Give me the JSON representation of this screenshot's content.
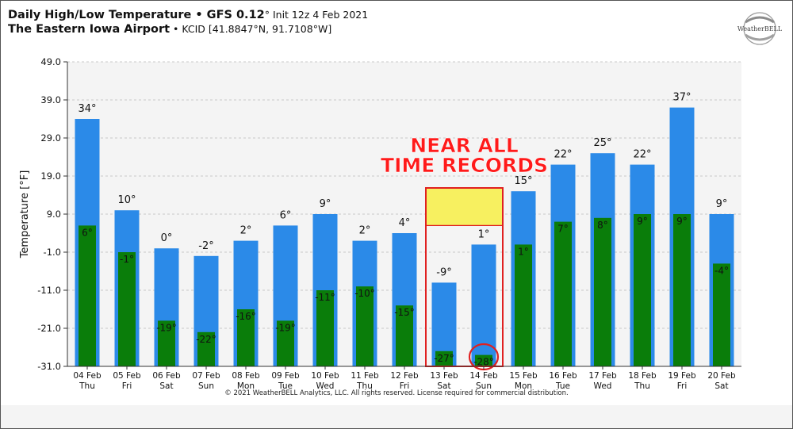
{
  "header": {
    "title_main": "Daily High/Low Temperature • GFS 0.12",
    "title_deg": "°",
    "title_init": " Init 12z 4 Feb 2021",
    "station_name": "The Eastern Iowa Airport",
    "station_info": " • KCID [41.8847°N, 91.7108°W]"
  },
  "logo": {
    "text": "WeatherBELL",
    "icon": "weatherbell-swirl-logo"
  },
  "copyright": "© 2021 WeatherBELL Analytics, LLC. All rights reserved. License required for commercial distribution.",
  "annotation": {
    "line1": "NEAR ALL",
    "line2": "TIME RECORDS",
    "color": "#ff1a1a",
    "highlight_color": "#f7f060"
  },
  "chart_data": {
    "type": "bar",
    "ylabel": "Temperature [°F]",
    "ylim": [
      -31.0,
      49.0
    ],
    "yticks": [
      "49.0",
      "39.0",
      "29.0",
      "19.0",
      "9.0",
      "-1.0",
      "-11.0",
      "-21.0",
      "-31.0"
    ],
    "grid": true,
    "categories": [
      {
        "date": "04 Feb",
        "day": "Thu"
      },
      {
        "date": "05 Feb",
        "day": "Fri"
      },
      {
        "date": "06 Feb",
        "day": "Sat"
      },
      {
        "date": "07 Feb",
        "day": "Sun"
      },
      {
        "date": "08 Feb",
        "day": "Mon"
      },
      {
        "date": "09 Feb",
        "day": "Tue"
      },
      {
        "date": "10 Feb",
        "day": "Wed"
      },
      {
        "date": "11 Feb",
        "day": "Thu"
      },
      {
        "date": "12 Feb",
        "day": "Fri"
      },
      {
        "date": "13 Feb",
        "day": "Sat"
      },
      {
        "date": "14 Feb",
        "day": "Sun"
      },
      {
        "date": "15 Feb",
        "day": "Mon"
      },
      {
        "date": "16 Feb",
        "day": "Tue"
      },
      {
        "date": "17 Feb",
        "day": "Wed"
      },
      {
        "date": "18 Feb",
        "day": "Thu"
      },
      {
        "date": "19 Feb",
        "day": "Fri"
      },
      {
        "date": "20 Feb",
        "day": "Sat"
      }
    ],
    "series": [
      {
        "role": "high",
        "color": "#2b8ae8",
        "values": [
          34,
          10,
          0,
          -2,
          2,
          6,
          9,
          2,
          4,
          -9,
          1,
          15,
          22,
          25,
          22,
          37,
          9
        ],
        "labels": [
          "34°",
          "10°",
          "0°",
          "-2°",
          "2°",
          "6°",
          "9°",
          "2°",
          "4°",
          "-9°",
          "1°",
          "15°",
          "22°",
          "25°",
          "22°",
          "37°",
          "9°"
        ]
      },
      {
        "role": "low",
        "color": "#0a7d0a",
        "values": [
          6,
          -1,
          -19,
          -22,
          -16,
          -19,
          -11,
          -10,
          -15,
          -27,
          -28,
          1,
          7,
          8,
          9,
          9,
          -4
        ],
        "labels": [
          "6°",
          "-1°",
          "-19°",
          "-22°",
          "-16°",
          "-19°",
          "-11°",
          "-10°",
          "-15°",
          "-27°",
          "-28°",
          "1°",
          "7°",
          "8°",
          "9°",
          "9°",
          "-4°"
        ]
      }
    ],
    "annotation_box_days": [
      "13 Feb",
      "14 Feb"
    ],
    "circled_value": {
      "date": "14 Feb",
      "label": "-28°"
    }
  }
}
